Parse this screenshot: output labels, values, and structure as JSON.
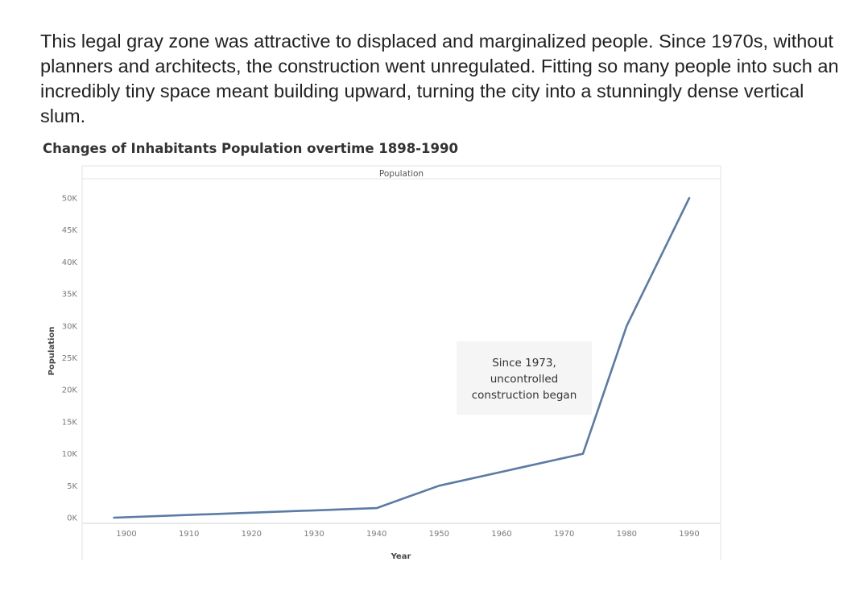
{
  "intro_text": "This legal gray zone was attractive to displaced and marginalized people. Since 1970s, without planners and architects, the construction went unregulated. Fitting so many people into such an incredibly tiny space meant building upward, turning the city into a stunningly dense vertical slum.",
  "chart_data": {
    "type": "line",
    "title": "Changes of Inhabitants Population overtime 1898-1990",
    "header_label": "Population",
    "xlabel": "Year",
    "ylabel": "Population",
    "x": [
      1898,
      1940,
      1950,
      1973,
      1980,
      1990
    ],
    "series": [
      {
        "values": [
          0,
          1500,
          5000,
          10000,
          30000,
          50000
        ],
        "color": "#5b7ba5"
      }
    ],
    "xlim": [
      1893,
      1995
    ],
    "ylim": [
      0,
      50000
    ],
    "x_ticks": [
      1900,
      1910,
      1920,
      1930,
      1940,
      1950,
      1960,
      1970,
      1980,
      1990
    ],
    "y_ticks": [
      0,
      5000,
      10000,
      15000,
      20000,
      25000,
      30000,
      35000,
      40000,
      45000,
      50000
    ],
    "y_tick_labels": [
      "0K",
      "5K",
      "10K",
      "15K",
      "20K",
      "25K",
      "30K",
      "35K",
      "40K",
      "45K",
      "50K"
    ],
    "grid": true,
    "annotations": [
      {
        "lines": [
          "Since 1973,",
          "uncontrolled",
          "construction began"
        ]
      }
    ]
  }
}
